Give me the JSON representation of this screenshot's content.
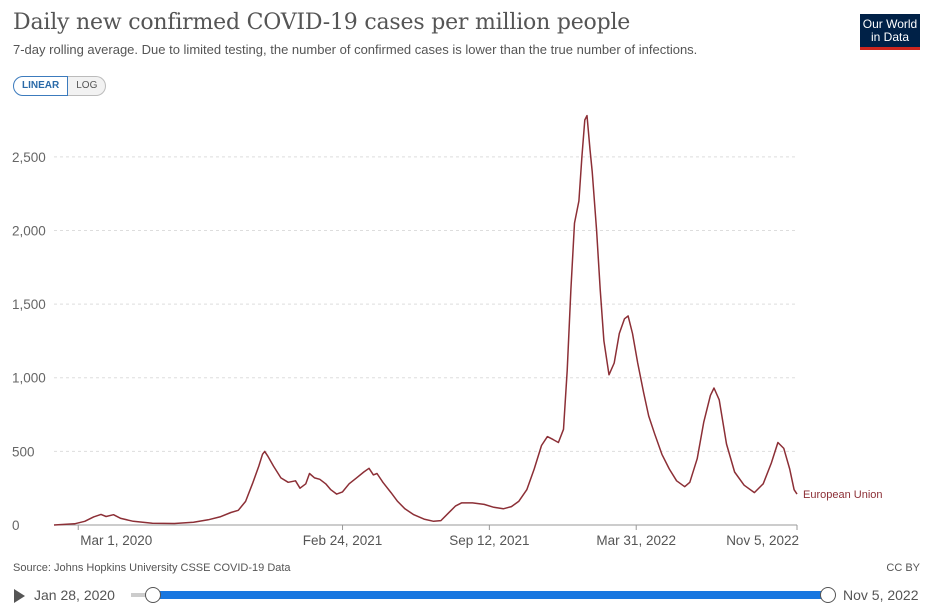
{
  "header": {
    "title": "Daily new confirmed COVID-19 cases per million people",
    "subtitle": "7-day rolling average. Due to limited testing, the number of confirmed cases is lower than the true number of infections.",
    "logo_line1": "Our World",
    "logo_line2": "in Data"
  },
  "toggle": {
    "linear_label": "LINEAR",
    "log_label": "LOG",
    "selected": "LINEAR"
  },
  "footer": {
    "source": "Source: Johns Hopkins University CSSE COVID-19 Data",
    "license": "CC BY"
  },
  "timeline": {
    "start_label": "Jan 28, 2020",
    "end_label": "Nov 5, 2022"
  },
  "colors": {
    "series": "#8c2f36",
    "accent": "#1877e0",
    "logo_bg": "#002147",
    "logo_bar": "#ce261e"
  },
  "chart_data": {
    "type": "line",
    "title": "Daily new confirmed COVID-19 cases per million people",
    "xlabel": "",
    "ylabel": "",
    "x_range": [
      "2020-01-28",
      "2022-11-05"
    ],
    "ylim": [
      0,
      2750
    ],
    "y_ticks": [
      0,
      500,
      1000,
      1500,
      2000,
      2500
    ],
    "y_tick_labels": [
      "0",
      "500",
      "1,000",
      "1,500",
      "2,000",
      "2,500"
    ],
    "x_ticks": [
      "2020-03-01",
      "2021-02-24",
      "2021-09-12",
      "2022-03-31",
      "2022-11-05"
    ],
    "x_tick_labels": [
      "Mar 1, 2020",
      "Feb 24, 2021",
      "Sep 12, 2021",
      "Mar 31, 2022",
      "Nov 5, 2022"
    ],
    "grid": "horizontal dashed",
    "series": [
      {
        "name": "European Union",
        "points": [
          [
            "2020-01-28",
            0
          ],
          [
            "2020-02-25",
            8
          ],
          [
            "2020-03-10",
            25
          ],
          [
            "2020-03-22",
            55
          ],
          [
            "2020-04-01",
            72
          ],
          [
            "2020-04-08",
            58
          ],
          [
            "2020-04-18",
            70
          ],
          [
            "2020-04-28",
            45
          ],
          [
            "2020-05-15",
            25
          ],
          [
            "2020-06-10",
            12
          ],
          [
            "2020-07-10",
            10
          ],
          [
            "2020-08-05",
            18
          ],
          [
            "2020-08-25",
            35
          ],
          [
            "2020-09-10",
            55
          ],
          [
            "2020-09-25",
            85
          ],
          [
            "2020-10-05",
            100
          ],
          [
            "2020-10-15",
            160
          ],
          [
            "2020-10-25",
            290
          ],
          [
            "2020-11-02",
            400
          ],
          [
            "2020-11-07",
            480
          ],
          [
            "2020-11-10",
            500
          ],
          [
            "2020-11-14",
            470
          ],
          [
            "2020-11-22",
            400
          ],
          [
            "2020-12-02",
            320
          ],
          [
            "2020-12-12",
            290
          ],
          [
            "2020-12-22",
            300
          ],
          [
            "2020-12-28",
            250
          ],
          [
            "2021-01-05",
            280
          ],
          [
            "2021-01-10",
            350
          ],
          [
            "2021-01-17",
            320
          ],
          [
            "2021-01-24",
            310
          ],
          [
            "2021-02-01",
            280
          ],
          [
            "2021-02-08",
            240
          ],
          [
            "2021-02-16",
            210
          ],
          [
            "2021-02-24",
            225
          ],
          [
            "2021-03-05",
            280
          ],
          [
            "2021-03-15",
            320
          ],
          [
            "2021-03-25",
            360
          ],
          [
            "2021-04-01",
            385
          ],
          [
            "2021-04-07",
            340
          ],
          [
            "2021-04-12",
            350
          ],
          [
            "2021-04-20",
            290
          ],
          [
            "2021-05-01",
            220
          ],
          [
            "2021-05-10",
            160
          ],
          [
            "2021-05-20",
            110
          ],
          [
            "2021-06-01",
            70
          ],
          [
            "2021-06-15",
            40
          ],
          [
            "2021-06-28",
            25
          ],
          [
            "2021-07-08",
            30
          ],
          [
            "2021-07-18",
            80
          ],
          [
            "2021-07-28",
            130
          ],
          [
            "2021-08-05",
            150
          ],
          [
            "2021-08-20",
            150
          ],
          [
            "2021-09-05",
            140
          ],
          [
            "2021-09-18",
            120
          ],
          [
            "2021-10-01",
            110
          ],
          [
            "2021-10-12",
            125
          ],
          [
            "2021-10-22",
            160
          ],
          [
            "2021-11-02",
            240
          ],
          [
            "2021-11-12",
            380
          ],
          [
            "2021-11-22",
            540
          ],
          [
            "2021-11-30",
            600
          ],
          [
            "2021-12-08",
            580
          ],
          [
            "2021-12-15",
            560
          ],
          [
            "2021-12-22",
            650
          ],
          [
            "2021-12-27",
            1050
          ],
          [
            "2022-01-01",
            1600
          ],
          [
            "2022-01-06",
            2050
          ],
          [
            "2022-01-12",
            2200
          ],
          [
            "2022-01-16",
            2500
          ],
          [
            "2022-01-20",
            2750
          ],
          [
            "2022-01-23",
            2780
          ],
          [
            "2022-01-27",
            2550
          ],
          [
            "2022-01-30",
            2400
          ],
          [
            "2022-02-05",
            2000
          ],
          [
            "2022-02-10",
            1600
          ],
          [
            "2022-02-15",
            1250
          ],
          [
            "2022-02-22",
            1020
          ],
          [
            "2022-03-01",
            1100
          ],
          [
            "2022-03-08",
            1300
          ],
          [
            "2022-03-15",
            1400
          ],
          [
            "2022-03-20",
            1420
          ],
          [
            "2022-03-26",
            1300
          ],
          [
            "2022-04-02",
            1100
          ],
          [
            "2022-04-10",
            900
          ],
          [
            "2022-04-17",
            740
          ],
          [
            "2022-04-25",
            620
          ],
          [
            "2022-05-05",
            480
          ],
          [
            "2022-05-15",
            380
          ],
          [
            "2022-05-25",
            300
          ],
          [
            "2022-06-05",
            260
          ],
          [
            "2022-06-12",
            290
          ],
          [
            "2022-06-22",
            450
          ],
          [
            "2022-07-01",
            700
          ],
          [
            "2022-07-10",
            880
          ],
          [
            "2022-07-15",
            930
          ],
          [
            "2022-07-22",
            850
          ],
          [
            "2022-08-01",
            550
          ],
          [
            "2022-08-12",
            360
          ],
          [
            "2022-08-25",
            270
          ],
          [
            "2022-09-08",
            220
          ],
          [
            "2022-09-20",
            280
          ],
          [
            "2022-10-01",
            420
          ],
          [
            "2022-10-10",
            560
          ],
          [
            "2022-10-18",
            520
          ],
          [
            "2022-10-26",
            380
          ],
          [
            "2022-11-01",
            240
          ],
          [
            "2022-11-05",
            210
          ]
        ]
      }
    ]
  }
}
